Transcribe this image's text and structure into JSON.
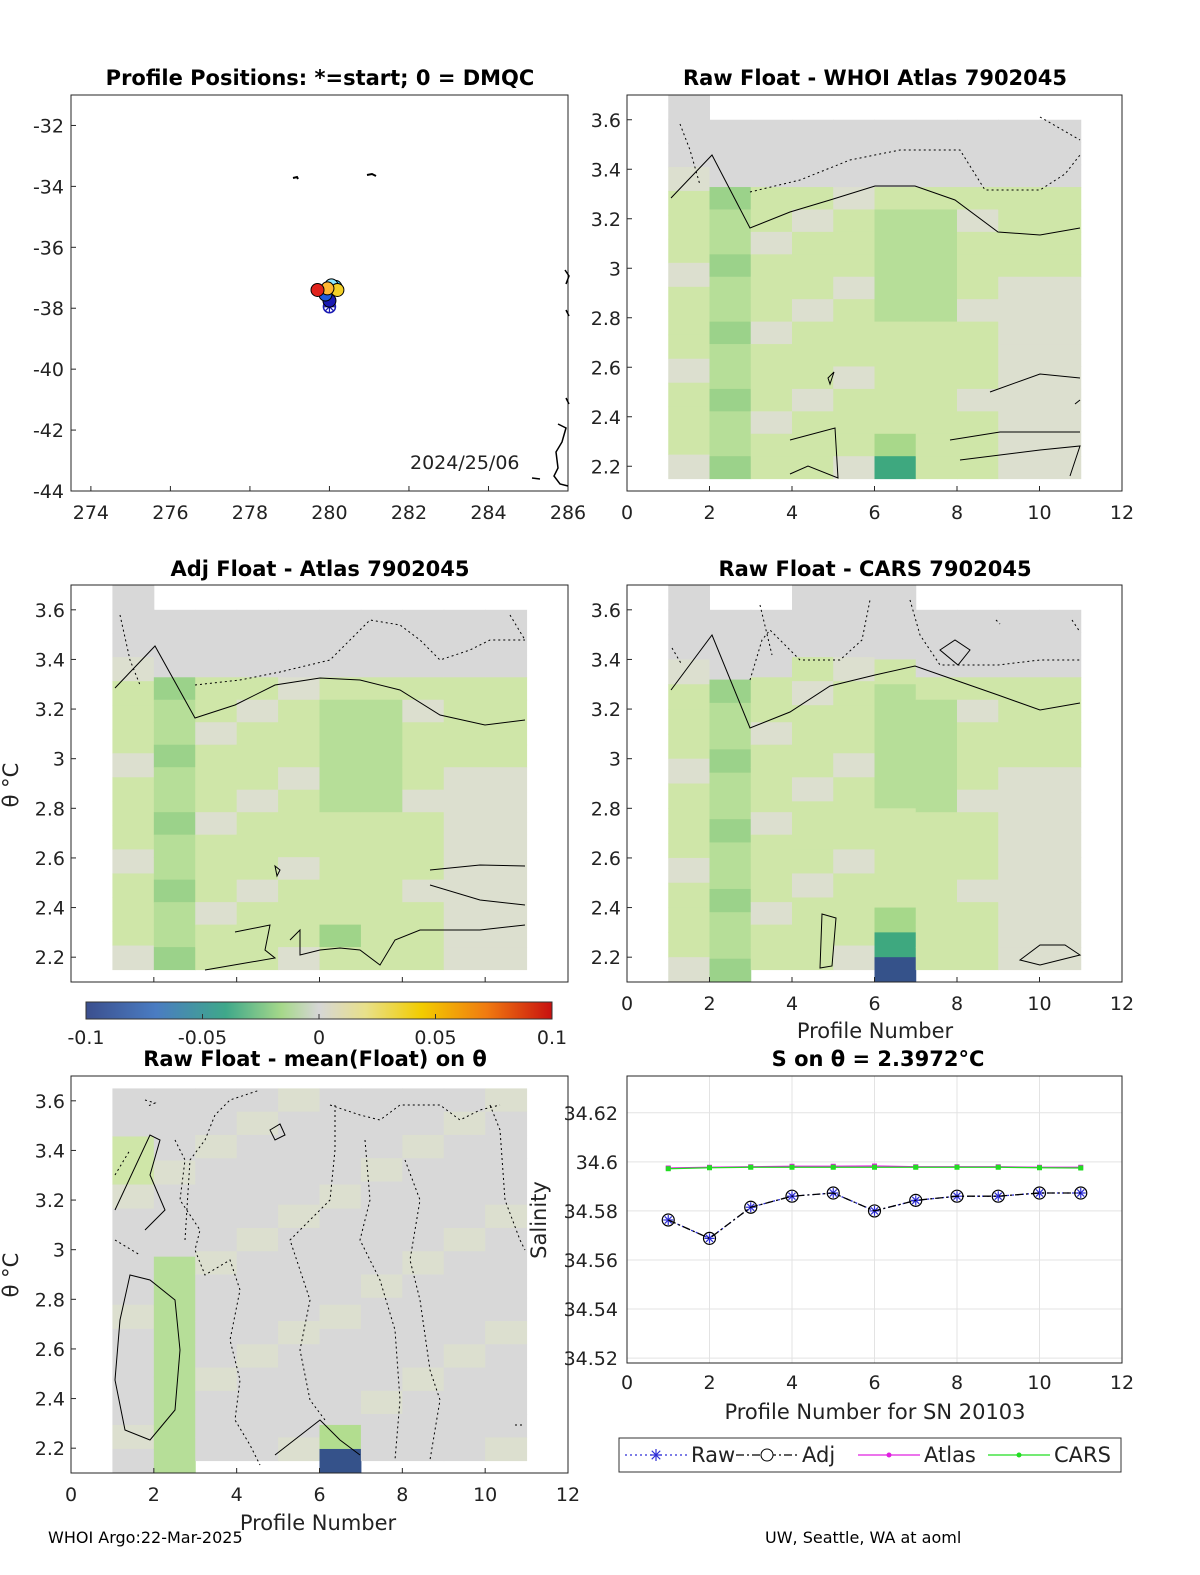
{
  "chart_data": [
    {
      "id": "map",
      "type": "scatter",
      "title": "Profile Positions: *=start; 0 = DMQC",
      "xlim": [
        273.5,
        286
      ],
      "ylim": [
        -44,
        -31
      ],
      "x_ticks": [
        "274",
        "276",
        "278",
        "280",
        "282",
        "284",
        "286"
      ],
      "y_ticks": [
        "-32",
        "-34",
        "-36",
        "-38",
        "-40",
        "-42",
        "-44"
      ],
      "annotation": "2024/25/06",
      "start_marker": {
        "x": 280.0,
        "y": -37.95
      },
      "points": [
        {
          "x": 280.0,
          "y": -37.75,
          "color": "#1a1ab3"
        },
        {
          "x": 279.9,
          "y": -37.55,
          "color": "#1e5adc"
        },
        {
          "x": 280.15,
          "y": -37.3,
          "color": "#33c8ff"
        },
        {
          "x": 280.05,
          "y": -37.25,
          "color": "#8ae6ff"
        },
        {
          "x": 280.2,
          "y": -37.4,
          "color": "#f2d027"
        },
        {
          "x": 279.95,
          "y": -37.35,
          "color": "#ffb833"
        },
        {
          "x": 279.7,
          "y": -37.4,
          "color": "#e0231c"
        }
      ]
    },
    {
      "id": "raw-atlas",
      "type": "heatmap",
      "title": "Raw Float - WHOI Atlas  7902045",
      "xlim": [
        0,
        12
      ],
      "ylim": [
        2.1,
        3.7
      ],
      "x_ticks": [
        "0",
        "2",
        "4",
        "6",
        "8",
        "10",
        "12"
      ],
      "y_ticks": [
        "2.2",
        "2.4",
        "2.6",
        "2.8",
        "3",
        "3.2",
        "3.4",
        "3.6"
      ],
      "xlabel": "",
      "ylabel": ""
    },
    {
      "id": "adj-atlas",
      "type": "heatmap",
      "title": "Adj Float - Atlas  7902045",
      "xlim": [
        0,
        12
      ],
      "ylim": [
        2.1,
        3.7
      ],
      "x_ticks": [],
      "y_ticks": [
        "2.2",
        "2.4",
        "2.6",
        "2.8",
        "3",
        "3.2",
        "3.4",
        "3.6"
      ],
      "xlabel": "",
      "ylabel": "θ °C"
    },
    {
      "id": "raw-cars",
      "type": "heatmap",
      "title": "Raw Float - CARS  7902045",
      "xlim": [
        0,
        12
      ],
      "ylim": [
        2.1,
        3.7
      ],
      "x_ticks": [
        "0",
        "2",
        "4",
        "6",
        "8",
        "10",
        "12"
      ],
      "y_ticks": [
        "2.2",
        "2.4",
        "2.6",
        "2.8",
        "3",
        "3.2",
        "3.4",
        "3.6"
      ],
      "xlabel": "Profile Number",
      "ylabel": ""
    },
    {
      "id": "colorbar",
      "type": "heatmap",
      "clim": [
        -0.1,
        0.1
      ],
      "ticks": [
        "-0.1",
        "-0.05",
        "0",
        "0.05",
        "0.1"
      ]
    },
    {
      "id": "raw-mean",
      "type": "heatmap",
      "title": "Raw Float - mean(Float) on θ",
      "xlim": [
        0,
        12
      ],
      "ylim": [
        2.1,
        3.7
      ],
      "x_ticks": [
        "0",
        "2",
        "4",
        "6",
        "8",
        "10",
        "12"
      ],
      "y_ticks": [
        "2.2",
        "2.4",
        "2.6",
        "2.8",
        "3",
        "3.2",
        "3.4",
        "3.6"
      ],
      "xlabel": "Profile Number",
      "ylabel": "θ °C"
    },
    {
      "id": "salinity",
      "type": "line",
      "title": "S on θ = 2.3972°C",
      "xlabel": "Profile Number for SN 20103",
      "ylabel": "Salinity",
      "xlim": [
        0,
        12
      ],
      "ylim": [
        34.518,
        34.635
      ],
      "grid": true,
      "legend_position": "bottom",
      "x_ticks": [
        "0",
        "2",
        "4",
        "6",
        "8",
        "10",
        "12"
      ],
      "y_ticks": [
        "34.52",
        "34.54",
        "34.56",
        "34.58",
        "34.6",
        "34.62"
      ],
      "x": [
        1,
        2,
        3,
        4,
        5,
        6,
        7,
        8,
        9,
        10,
        11
      ],
      "series": [
        {
          "name": "Raw",
          "color": "#2d2dd6",
          "values": [
            34.5763,
            34.5688,
            34.5815,
            34.586,
            34.5873,
            34.58,
            34.5843,
            34.586,
            34.586,
            34.5873,
            34.5873
          ]
        },
        {
          "name": "Adj",
          "color": "#000000",
          "values": [
            34.5763,
            34.5688,
            34.5815,
            34.586,
            34.5873,
            34.58,
            34.5843,
            34.586,
            34.586,
            34.5873,
            34.5873
          ]
        },
        {
          "name": "Atlas",
          "color": "#e020e0",
          "values": [
            34.5975,
            34.5978,
            34.598,
            34.5982,
            34.5982,
            34.5983,
            34.598,
            34.598,
            34.598,
            34.5978,
            34.5978
          ]
        },
        {
          "name": "CARS",
          "color": "#22dd22",
          "values": [
            34.5972,
            34.5976,
            34.5978,
            34.5978,
            34.5978,
            34.5978,
            34.5978,
            34.5978,
            34.5978,
            34.5976,
            34.5975
          ]
        }
      ]
    }
  ],
  "footer": {
    "left": "WHOI Argo:22-Mar-2025",
    "right": "UW, Seattle, WA at aoml"
  }
}
